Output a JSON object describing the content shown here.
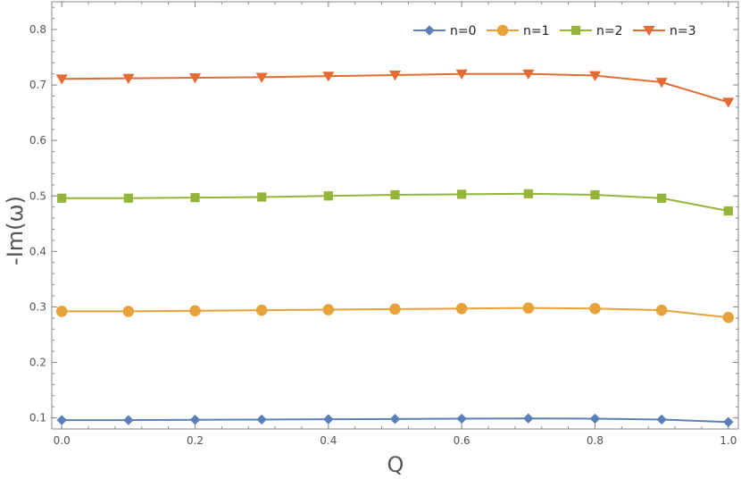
{
  "chart_data": {
    "type": "line",
    "title": "",
    "xlabel": "Q",
    "ylabel": "-Im(ω)",
    "xlim": [
      -0.015,
      1.015
    ],
    "ylim": [
      0.08,
      0.85
    ],
    "x_ticks": [
      0.0,
      0.2,
      0.4,
      0.6,
      0.8,
      1.0
    ],
    "x_tick_labels": [
      "0.0",
      "0.2",
      "0.4",
      "0.6",
      "0.8",
      "1.0"
    ],
    "y_ticks": [
      0.1,
      0.2,
      0.3,
      0.4,
      0.5,
      0.6,
      0.7,
      0.8
    ],
    "y_tick_labels": [
      "0.1",
      "0.2",
      "0.3",
      "0.4",
      "0.5",
      "0.6",
      "0.7",
      "0.8"
    ],
    "grid": false,
    "legend_position": "top-right",
    "x": [
      0.0,
      0.1,
      0.2,
      0.3,
      0.4,
      0.5,
      0.6,
      0.7,
      0.8,
      0.9,
      1.0
    ],
    "series": [
      {
        "name": "n=0",
        "color": "#5b7fb8",
        "marker": "diamond",
        "values": [
          0.096,
          0.096,
          0.0965,
          0.097,
          0.0975,
          0.098,
          0.0985,
          0.099,
          0.0985,
          0.097,
          0.0925
        ]
      },
      {
        "name": "n=1",
        "color": "#e8a23a",
        "marker": "circle",
        "values": [
          0.292,
          0.292,
          0.293,
          0.294,
          0.295,
          0.296,
          0.297,
          0.298,
          0.297,
          0.294,
          0.281
        ]
      },
      {
        "name": "n=2",
        "color": "#94b43a",
        "marker": "square",
        "values": [
          0.496,
          0.496,
          0.497,
          0.498,
          0.5,
          0.502,
          0.503,
          0.504,
          0.502,
          0.496,
          0.473
        ]
      },
      {
        "name": "n=3",
        "color": "#e36b34",
        "marker": "triangle-down",
        "values": [
          0.711,
          0.712,
          0.713,
          0.714,
          0.716,
          0.718,
          0.72,
          0.72,
          0.717,
          0.705,
          0.669
        ]
      }
    ]
  }
}
